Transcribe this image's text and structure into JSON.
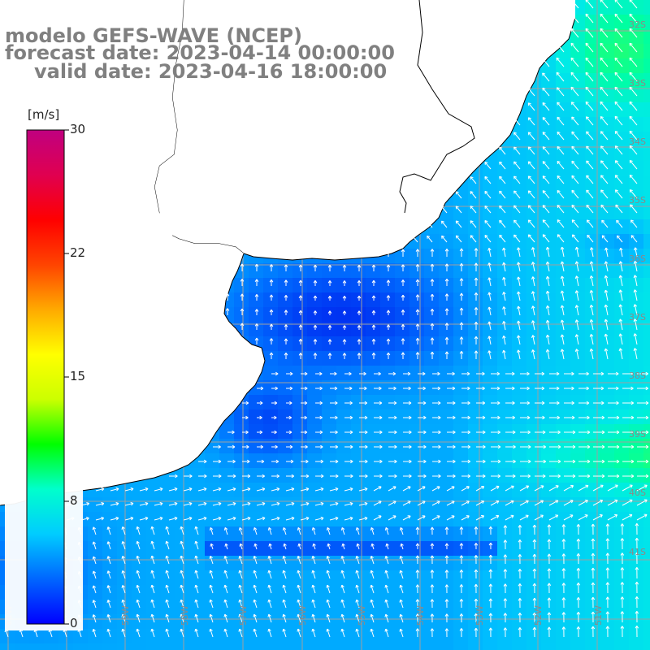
{
  "title": {
    "line1": "modelo GEFS-WAVE (NCEP)",
    "line2": "forecast date: 2023-04-14 00:00:00",
    "line3": "valid date: 2023-04-16 18:00:00"
  },
  "colorbar": {
    "unit": "[m/s]",
    "ticks": [
      "30",
      "22",
      "15",
      "8",
      "0"
    ],
    "tick_values": [
      30,
      22,
      15,
      8,
      0
    ],
    "min": 0,
    "max": 30,
    "colors": [
      "#0000ff",
      "#0066ff",
      "#00ccff",
      "#00ffcc",
      "#00ff00",
      "#ccff00",
      "#ffff00",
      "#ffaa00",
      "#ff4400",
      "#ff0000",
      "#e00050",
      "#c00080"
    ]
  },
  "map": {
    "land_color": "#ffffff",
    "coast_color": "#000000",
    "grid_color": "#a0a0a0",
    "lat_labels": [
      "32S",
      "33S",
      "34S",
      "35S",
      "36S",
      "37S",
      "38S",
      "39S",
      "40S",
      "41S"
    ],
    "lon_labels": [
      "61W",
      "60W",
      "59W",
      "58W",
      "57W",
      "56W",
      "55W",
      "54W",
      "53W",
      "52W",
      "51W"
    ],
    "vector_color": "#ffffff"
  }
}
